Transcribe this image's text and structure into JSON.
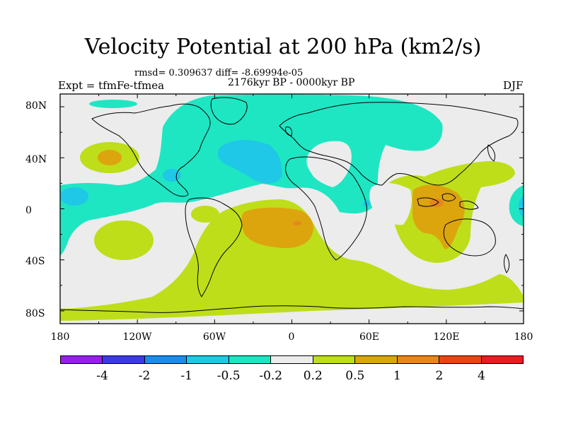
{
  "header": {
    "title": "Velocity Potential at 200 hPa (km2/s)",
    "stats": "rmsd= 0.309637 diff= -8.69994e-05",
    "period": "2176kyr BP - 0000kyr BP",
    "experiment": "Expt = tfmFe-tfmea",
    "season": "DJF"
  },
  "axes": {
    "lat_labels": [
      "80N",
      "40N",
      "0",
      "40S",
      "80S"
    ],
    "lon_labels": [
      "180",
      "120W",
      "60W",
      "0",
      "60E",
      "120E",
      "180"
    ]
  },
  "colorbar": {
    "colors": [
      "#9a1ee6",
      "#3b3be0",
      "#1e8ce6",
      "#1ec8e6",
      "#1ee6c3",
      "#ececec",
      "#bede1a",
      "#dca50e",
      "#e6871e",
      "#e64614",
      "#e61e1e"
    ],
    "labels": [
      "-4",
      "-2",
      "-1",
      "-0.5",
      "-0.2",
      "0.2",
      "0.5",
      "1",
      "2",
      "4"
    ]
  },
  "map_colors": {
    "neutral": "#ececec",
    "weak_positive": "#bede1a",
    "moderate_positive": "#dca50e",
    "strong_positive": "#e6871e",
    "weak_negative": "#1ee6c3",
    "moderate_negative": "#1ec8e6"
  }
}
